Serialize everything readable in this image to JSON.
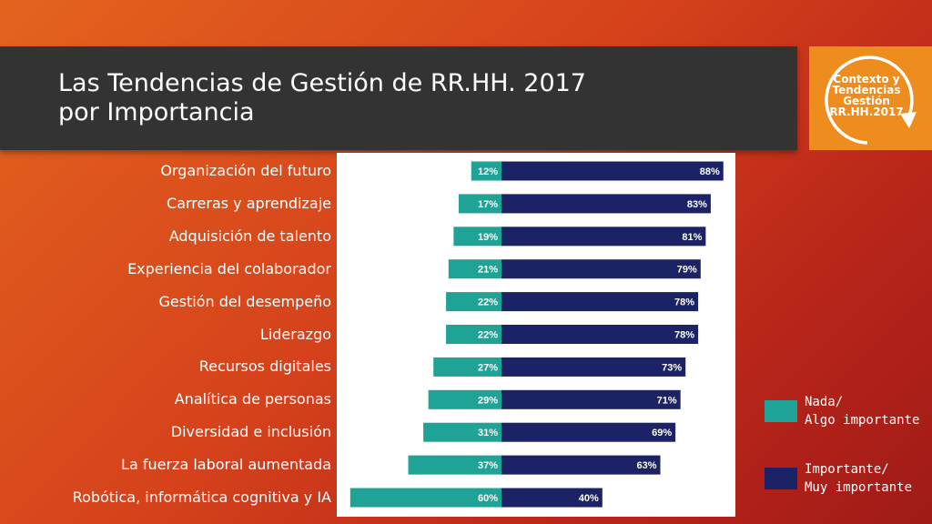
{
  "title": "Las Tendencias  de Gestión de RR.HH. 2017\npor Importancia",
  "badge": {
    "text": "Contexto y\nTendencias\nGestión\nRR.HH.2017",
    "icon": "circular-arrow-icon"
  },
  "colors": {
    "background": "#d5421b",
    "title_band": "#333333",
    "badge": "#ee8c1e",
    "nada": "#1ea396",
    "importante": "#1b2265"
  },
  "chart_data": {
    "type": "bar",
    "orientation": "horizontal",
    "stacked": "diverging",
    "categories": [
      "Organización del futuro",
      "Carreras y aprendizaje",
      "Adquisición de talento",
      "Experiencia del colaborador",
      "Gestión del desempeño",
      "Liderazgo",
      "Recursos digitales",
      "Analítica de personas",
      "Diversidad e inclusión",
      "La fuerza laboral aumentada",
      "Robótica, informática cognitiva y IA"
    ],
    "series": [
      {
        "name": "Nada/\nAlgo importante",
        "values": [
          12,
          17,
          19,
          21,
          22,
          22,
          27,
          29,
          31,
          37,
          60
        ],
        "labels": [
          "12%",
          "17%",
          "19%",
          "21%",
          "22%",
          "22%",
          "27%",
          "29%",
          "31%",
          "37%",
          "60%"
        ],
        "color": "#1ea396"
      },
      {
        "name": "Importante/\nMuy importante",
        "values": [
          88,
          83,
          81,
          79,
          78,
          78,
          73,
          71,
          69,
          63,
          40
        ],
        "labels": [
          "88%",
          "83%",
          "81%",
          "79%",
          "78%",
          "78%",
          "73%",
          "71%",
          "69%",
          "63%",
          "40%"
        ],
        "color": "#1b2265"
      }
    ],
    "xlim": [
      -60,
      100
    ],
    "grid": false,
    "legend": "right"
  }
}
